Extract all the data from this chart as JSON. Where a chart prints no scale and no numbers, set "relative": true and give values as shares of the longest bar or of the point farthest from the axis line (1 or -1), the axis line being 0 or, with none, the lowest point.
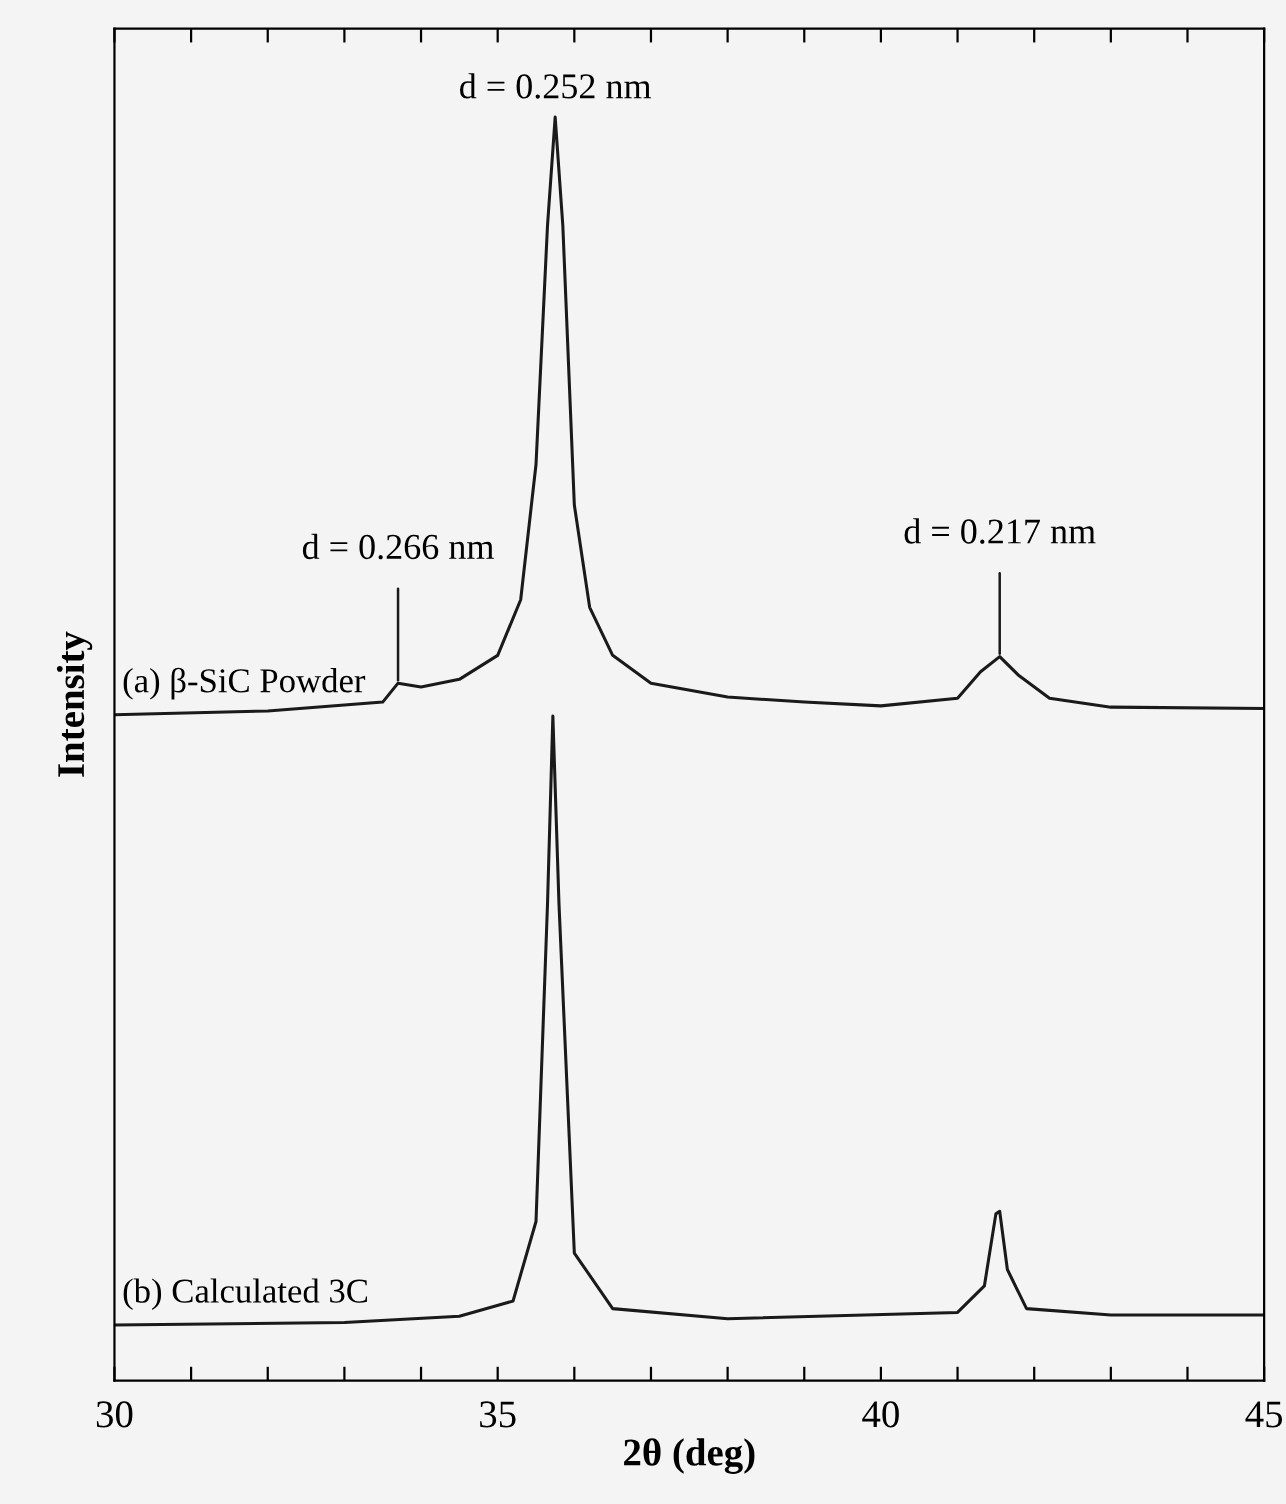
{
  "chart_data": {
    "type": "line",
    "relative": true,
    "xlabel": "2θ (deg)",
    "ylabel": "Intensity",
    "xlim": [
      30,
      45
    ],
    "xticks": [
      30,
      {
        "value": 31,
        "label": null
      },
      {
        "value": 32,
        "label": null
      },
      {
        "value": 33,
        "label": null
      },
      {
        "value": 34,
        "label": null
      },
      35,
      {
        "value": 36,
        "label": null
      },
      {
        "value": 37,
        "label": null
      },
      {
        "value": 38,
        "label": null
      },
      {
        "value": 39,
        "label": null
      },
      40,
      {
        "value": 41,
        "label": null
      },
      {
        "value": 42,
        "label": null
      },
      {
        "value": 43,
        "label": null
      },
      {
        "value": 44,
        "label": null
      },
      45
    ],
    "tick_labels": "x",
    "grid": false,
    "marker": "none",
    "line_style": "solid",
    "series": [
      {
        "name": "(a) β-SiC Powder",
        "color": "#1a1a1a",
        "x": [
          30,
          32,
          33.5,
          33.7,
          34,
          34.5,
          35,
          35.3,
          35.5,
          35.65,
          35.75,
          35.85,
          36,
          36.2,
          36.5,
          37,
          38,
          39,
          40,
          41,
          41.3,
          41.55,
          41.8,
          42.2,
          43,
          45
        ],
        "values": [
          0.527,
          0.53,
          0.537,
          0.552,
          0.549,
          0.555,
          0.574,
          0.618,
          0.725,
          0.914,
          1.0,
          0.914,
          0.693,
          0.612,
          0.574,
          0.552,
          0.541,
          0.537,
          0.534,
          0.54,
          0.561,
          0.573,
          0.558,
          0.54,
          0.533,
          0.532
        ]
      },
      {
        "name": "(b) Calculated 3C",
        "color": "#1a1a1a",
        "x": [
          30,
          33,
          34.5,
          35.2,
          35.5,
          35.65,
          35.72,
          35.8,
          36,
          36.5,
          38,
          41,
          41.35,
          41.5,
          41.55,
          41.65,
          41.9,
          43,
          45
        ],
        "values": [
          0.044,
          0.046,
          0.051,
          0.063,
          0.126,
          0.377,
          0.526,
          0.377,
          0.101,
          0.057,
          0.049,
          0.054,
          0.075,
          0.132,
          0.134,
          0.088,
          0.057,
          0.052,
          0.052
        ]
      }
    ],
    "annotations": [
      {
        "text": "d = 0.252 nm",
        "x": 35.75,
        "y": 1.0
      },
      {
        "text": "d = 0.266 nm",
        "x": 33.7,
        "y": 0.552
      },
      {
        "text": "d = 0.217 nm",
        "x": 41.55,
        "y": 0.573
      }
    ]
  }
}
